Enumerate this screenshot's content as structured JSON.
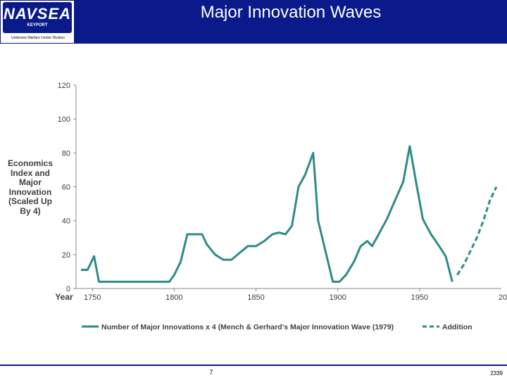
{
  "header": {
    "logo_text": "NAVSEA",
    "logo_subtitle": "KEYPORT",
    "logo_division": "Undersea Warfare Center Division",
    "title": "Major Innovation Waves"
  },
  "footer": {
    "page_number": "7",
    "doc_number": "2339"
  },
  "colors": {
    "header_bg": "#0a1a8a",
    "series": "#2e8b86"
  },
  "chart_data": {
    "type": "line",
    "title": "Major Innovation Waves",
    "xlabel": "Year",
    "ylabel": "Economics Index and Major Innovation (Scaled Up By 4)",
    "xlim": [
      1740,
      2000
    ],
    "ylim": [
      0,
      120
    ],
    "x_ticks": [
      1750,
      1800,
      1850,
      1900,
      1950
    ],
    "x_tick_labels": [
      "1750",
      "1800",
      "1850",
      "1900",
      "1950"
    ],
    "x_end_label": "20",
    "y_ticks": [
      0,
      20,
      40,
      60,
      80,
      100,
      120
    ],
    "y_tick_labels": [
      "0",
      "20",
      "40",
      "60",
      "80",
      "100",
      "120"
    ],
    "legend_position": "bottom",
    "series": [
      {
        "name": "Number of Major Innovations x 4 (Mench & Gerhard's Major Innovation Wave (1979)",
        "style": "solid",
        "points": [
          [
            1743,
            11
          ],
          [
            1747,
            11
          ],
          [
            1751,
            19
          ],
          [
            1754,
            4
          ],
          [
            1760,
            4
          ],
          [
            1770,
            4
          ],
          [
            1780,
            4
          ],
          [
            1790,
            4
          ],
          [
            1797,
            4
          ],
          [
            1800,
            8
          ],
          [
            1804,
            16
          ],
          [
            1808,
            32
          ],
          [
            1812,
            32
          ],
          [
            1817,
            32
          ],
          [
            1820,
            26
          ],
          [
            1825,
            20
          ],
          [
            1830,
            17
          ],
          [
            1835,
            17
          ],
          [
            1840,
            21
          ],
          [
            1845,
            25
          ],
          [
            1850,
            25
          ],
          [
            1855,
            28
          ],
          [
            1860,
            32
          ],
          [
            1864,
            33
          ],
          [
            1868,
            32
          ],
          [
            1872,
            37
          ],
          [
            1876,
            60
          ],
          [
            1880,
            67
          ],
          [
            1885,
            80
          ],
          [
            1888,
            40
          ],
          [
            1893,
            20
          ],
          [
            1897,
            4
          ],
          [
            1901,
            4
          ],
          [
            1905,
            8
          ],
          [
            1910,
            16
          ],
          [
            1914,
            25
          ],
          [
            1918,
            28
          ],
          [
            1921,
            25
          ],
          [
            1925,
            32
          ],
          [
            1930,
            41
          ],
          [
            1935,
            52
          ],
          [
            1940,
            63
          ],
          [
            1944,
            84
          ],
          [
            1948,
            62
          ],
          [
            1952,
            41
          ],
          [
            1957,
            32
          ],
          [
            1962,
            25
          ],
          [
            1966,
            19
          ],
          [
            1970,
            4
          ]
        ]
      },
      {
        "name": "Addition",
        "style": "dashed",
        "points": [
          [
            1973,
            8
          ],
          [
            1977,
            14
          ],
          [
            1981,
            22
          ],
          [
            1985,
            30
          ],
          [
            1989,
            40
          ],
          [
            1993,
            52
          ],
          [
            1997,
            60
          ]
        ]
      }
    ]
  }
}
